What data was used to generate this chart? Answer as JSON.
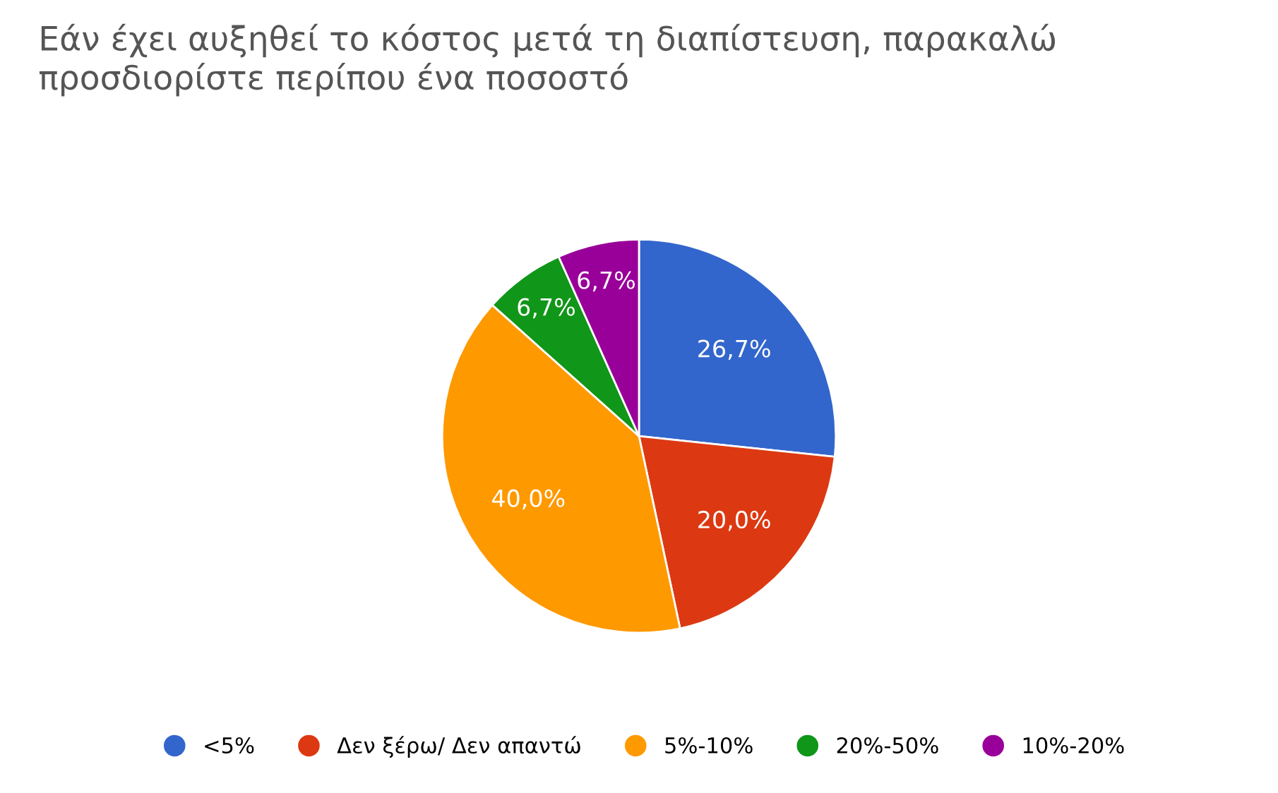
{
  "chart_data": {
    "type": "pie",
    "title": "Εάν έχει αυξηθεί το κόστος μετά τη διαπίστευση, παρακαλώ προσδιορίστε περίπου ένα ποσοστό",
    "categories": [
      "<5%",
      "Δεν ξέρω/ Δεν απαντώ",
      "5%-10%",
      "20%-50%",
      "10%-20%"
    ],
    "values": [
      26.7,
      20.0,
      40.0,
      6.7,
      6.7
    ],
    "value_labels": [
      "26,7%",
      "20,0%",
      "40,0%",
      "6,7%",
      "6,7%"
    ],
    "colors": [
      "#3366cc",
      "#dc3912",
      "#ff9900",
      "#109618",
      "#990099"
    ],
    "legend": "bottom"
  }
}
